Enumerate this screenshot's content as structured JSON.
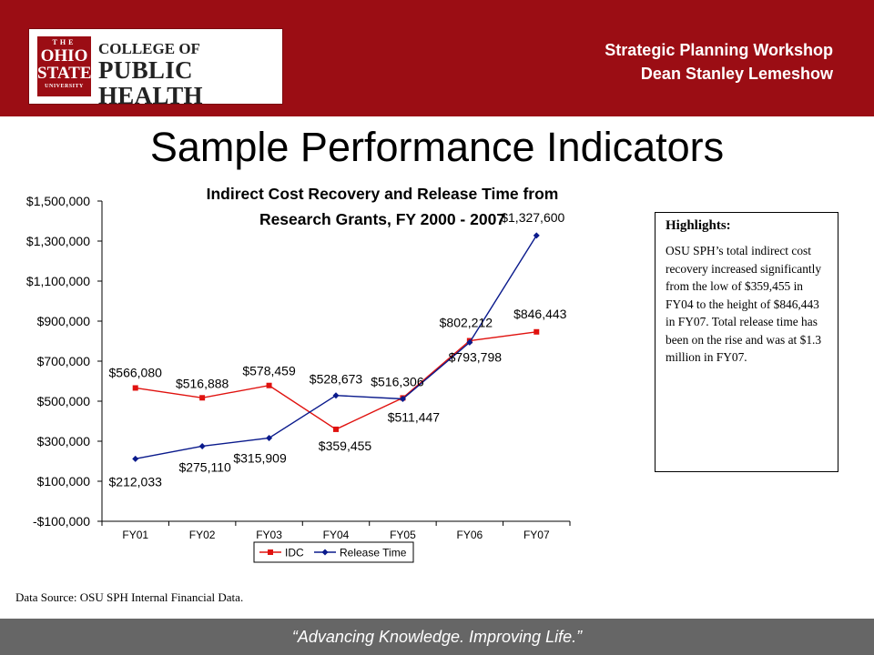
{
  "header": {
    "logo": {
      "the": "THE",
      "ohio": "OHIO",
      "state": "STATE",
      "university": "UNIVERSITY",
      "college_line1": "COLLEGE OF",
      "college_line2": "PUBLIC HEALTH"
    },
    "line1": "Strategic Planning Workshop",
    "line2": "Dean Stanley Lemeshow",
    "background_color": "#9b0d14"
  },
  "title": "Sample Performance Indicators",
  "chart_title_line1": "Indirect Cost Recovery and Release Time from",
  "chart_title_line2": "Research Grants, FY 2000 - 2007",
  "chart_data": {
    "type": "line",
    "title": "Indirect Cost Recovery and Release Time from Research Grants, FY 2000 - 2007",
    "categories": [
      "FY01",
      "FY02",
      "FY03",
      "FY04",
      "FY05",
      "FY06",
      "FY07"
    ],
    "ylim": [
      -100000,
      1500000
    ],
    "yticks": [
      -100000,
      100000,
      300000,
      500000,
      700000,
      900000,
      1100000,
      1300000,
      1500000
    ],
    "ytick_labels": [
      "-$100,000",
      "$100,000",
      "$300,000",
      "$500,000",
      "$700,000",
      "$900,000",
      "$1,100,000",
      "$1,300,000",
      "$1,500,000"
    ],
    "grid": false,
    "legend_position": "bottom",
    "series": [
      {
        "name": "IDC",
        "color": "#e0120f",
        "marker": "square",
        "values": [
          566080,
          516888,
          578459,
          359455,
          516306,
          802212,
          846443
        ],
        "labels": [
          "$566,080",
          "$516,888",
          "$578,459",
          "$359,455",
          "$516,306",
          "$802,212",
          "$846,443"
        ]
      },
      {
        "name": "Release Time",
        "color": "#0a1a8c",
        "marker": "diamond",
        "values": [
          212033,
          275110,
          315909,
          528673,
          511447,
          793798,
          1327600
        ],
        "labels": [
          "$212,033",
          "$275,110",
          "$315,909",
          "$528,673",
          "$511,447",
          "$793,798",
          "$1,327,600"
        ]
      }
    ]
  },
  "highlights": {
    "title": "Highlights:",
    "body": "OSU SPH’s total indirect cost recovery increased significantly from the low of $359,455 in FY04 to the height of $846,443 in FY07. Total release time has been on the rise and was at $1.3 million in FY07."
  },
  "source": "Data Source: OSU SPH Internal Financial Data.",
  "footer": "“Advancing Knowledge. Improving Life.”"
}
